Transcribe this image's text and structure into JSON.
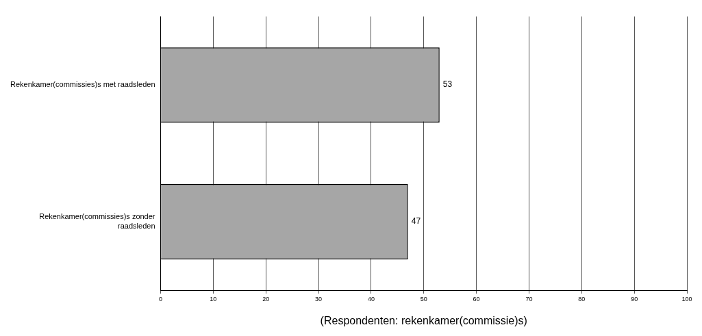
{
  "chart_data": {
    "type": "bar",
    "orientation": "horizontal",
    "categories": [
      "Rekenkamer(commissies)s met raadsleden",
      "Rekenkamer(commissies)s zonder raadsleden"
    ],
    "values": [
      53,
      47
    ],
    "color": "#a6a6a6",
    "xlim": [
      0,
      100
    ],
    "xticks": [
      0,
      10,
      20,
      30,
      40,
      50,
      60,
      70,
      80,
      90,
      100
    ],
    "xlabel": "(Respondenten: rekenkamer(commissie)s)",
    "grid": "x",
    "data_labels": true,
    "legend": false
  }
}
